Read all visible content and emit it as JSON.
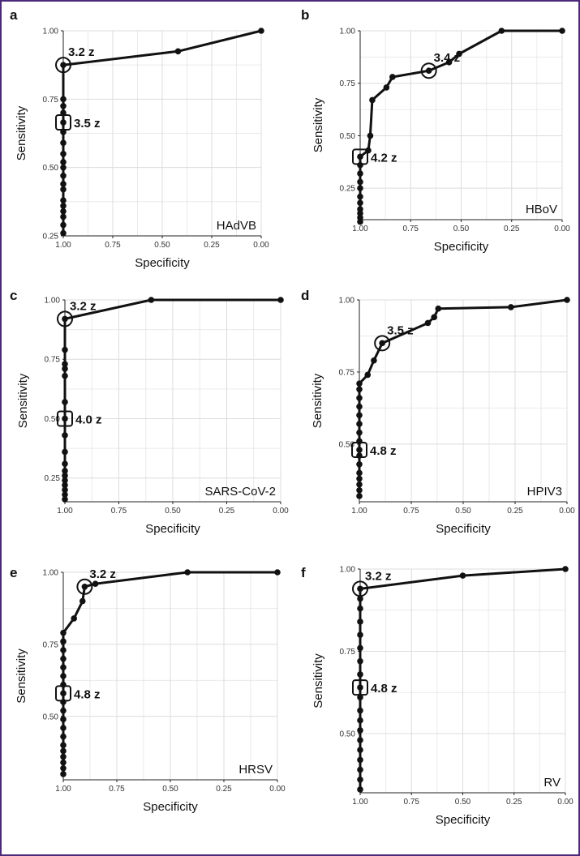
{
  "chart_data": [
    {
      "type": "line",
      "panel": "a",
      "label": "HAdVB",
      "xlabel": "Specificity",
      "ylabel": "Sensitivity",
      "xlim": [
        1.0,
        0.0
      ],
      "ylim": [
        0.25,
        1.0
      ],
      "xticks": [
        "1.00",
        "0.75",
        "0.50",
        "0.25",
        "0.00"
      ],
      "yticks": [
        "0.25",
        "0.50",
        "0.75",
        "1.00"
      ],
      "xticks_v": [
        1.0,
        0.75,
        0.5,
        0.25,
        0.0
      ],
      "yticks_v": [
        0.25,
        0.5,
        0.75,
        1.0
      ],
      "curve": [
        [
          1.0,
          0.26
        ],
        [
          1.0,
          0.875
        ],
        [
          0.42,
          0.925
        ],
        [
          0.0,
          1.0
        ]
      ],
      "points": [
        [
          1.0,
          0.26
        ],
        [
          1.0,
          0.29
        ],
        [
          1.0,
          0.32
        ],
        [
          1.0,
          0.34
        ],
        [
          1.0,
          0.36
        ],
        [
          1.0,
          0.38
        ],
        [
          1.0,
          0.42
        ],
        [
          1.0,
          0.44
        ],
        [
          1.0,
          0.47
        ],
        [
          1.0,
          0.5
        ],
        [
          1.0,
          0.52
        ],
        [
          1.0,
          0.55
        ],
        [
          1.0,
          0.59
        ],
        [
          1.0,
          0.63
        ],
        [
          1.0,
          0.665
        ],
        [
          1.0,
          0.7
        ],
        [
          1.0,
          0.725
        ],
        [
          1.0,
          0.75
        ],
        [
          1.0,
          0.875
        ],
        [
          0.42,
          0.925
        ],
        [
          0.0,
          1.0
        ]
      ],
      "annotations": [
        {
          "text": "3.2 z",
          "x": 1.0,
          "y": 0.875,
          "marker": "circle"
        },
        {
          "text": "3.5 z",
          "x": 1.0,
          "y": 0.665,
          "marker": "square"
        }
      ]
    },
    {
      "type": "line",
      "panel": "b",
      "label": "HBoV",
      "xlabel": "Specificity",
      "ylabel": "Sensitivity",
      "xlim": [
        1.0,
        0.0
      ],
      "ylim": [
        0.1,
        1.0
      ],
      "xticks": [
        "1.00",
        "0.75",
        "0.50",
        "0.25",
        "0.00"
      ],
      "yticks": [
        "0.25",
        "0.50",
        "0.75",
        "1.00"
      ],
      "xticks_v": [
        1.0,
        0.75,
        0.5,
        0.25,
        0.0
      ],
      "yticks_v": [
        0.25,
        0.5,
        0.75,
        1.0
      ],
      "curve": [
        [
          1.0,
          0.09
        ],
        [
          1.0,
          0.4
        ],
        [
          0.96,
          0.43
        ],
        [
          0.95,
          0.5
        ],
        [
          0.94,
          0.67
        ],
        [
          0.87,
          0.73
        ],
        [
          0.84,
          0.78
        ],
        [
          0.66,
          0.81
        ],
        [
          0.56,
          0.85
        ],
        [
          0.51,
          0.89
        ],
        [
          0.3,
          1.0
        ],
        [
          0.0,
          1.0
        ]
      ],
      "points": [
        [
          1.0,
          0.09
        ],
        [
          1.0,
          0.11
        ],
        [
          1.0,
          0.13
        ],
        [
          1.0,
          0.15
        ],
        [
          1.0,
          0.18
        ],
        [
          1.0,
          0.21
        ],
        [
          1.0,
          0.25
        ],
        [
          1.0,
          0.28
        ],
        [
          1.0,
          0.32
        ],
        [
          1.0,
          0.36
        ],
        [
          1.0,
          0.4
        ],
        [
          0.96,
          0.43
        ],
        [
          0.95,
          0.5
        ],
        [
          0.94,
          0.67
        ],
        [
          0.87,
          0.73
        ],
        [
          0.84,
          0.78
        ],
        [
          0.66,
          0.81
        ],
        [
          0.56,
          0.85
        ],
        [
          0.51,
          0.89
        ],
        [
          0.3,
          1.0
        ],
        [
          0.0,
          1.0
        ]
      ],
      "annotations": [
        {
          "text": "3.4 z",
          "x": 0.66,
          "y": 0.81,
          "marker": "circle"
        },
        {
          "text": "4.2 z",
          "x": 1.0,
          "y": 0.4,
          "marker": "square"
        }
      ]
    },
    {
      "type": "line",
      "panel": "c",
      "label": "SARS-CoV-2",
      "xlabel": "Specificity",
      "ylabel": "Sensitivity",
      "xlim": [
        1.0,
        0.0
      ],
      "ylim": [
        0.15,
        1.0
      ],
      "xticks": [
        "1.00",
        "0.75",
        "0.50",
        "0.25",
        "0.00"
      ],
      "yticks": [
        "0.25",
        "0.50",
        "0.75",
        "1.00"
      ],
      "xticks_v": [
        1.0,
        0.75,
        0.5,
        0.25,
        0.0
      ],
      "yticks_v": [
        0.25,
        0.5,
        0.75,
        1.0
      ],
      "curve": [
        [
          1.0,
          0.16
        ],
        [
          1.0,
          0.92
        ],
        [
          0.6,
          1.0
        ],
        [
          0.0,
          1.0
        ]
      ],
      "points": [
        [
          1.0,
          0.16
        ],
        [
          1.0,
          0.18
        ],
        [
          1.0,
          0.2
        ],
        [
          1.0,
          0.22
        ],
        [
          1.0,
          0.24
        ],
        [
          1.0,
          0.26
        ],
        [
          1.0,
          0.28
        ],
        [
          1.0,
          0.31
        ],
        [
          1.0,
          0.36
        ],
        [
          1.0,
          0.43
        ],
        [
          1.0,
          0.5
        ],
        [
          1.0,
          0.57
        ],
        [
          1.0,
          0.68
        ],
        [
          1.0,
          0.71
        ],
        [
          1.0,
          0.73
        ],
        [
          1.0,
          0.79
        ],
        [
          1.0,
          0.92
        ],
        [
          0.6,
          1.0
        ],
        [
          0.0,
          1.0
        ]
      ],
      "annotations": [
        {
          "text": "3.2 z",
          "x": 1.0,
          "y": 0.92,
          "marker": "circle"
        },
        {
          "text": "4.0 z",
          "x": 1.0,
          "y": 0.5,
          "marker": "square"
        }
      ]
    },
    {
      "type": "line",
      "panel": "d",
      "label": "HPIV3",
      "xlabel": "Specificity",
      "ylabel": "Sensitivity",
      "xlim": [
        1.0,
        0.0
      ],
      "ylim": [
        0.3,
        1.0
      ],
      "xticks": [
        "1.00",
        "0.75",
        "0.50",
        "0.25",
        "0.00"
      ],
      "yticks": [
        "0.50",
        "0.75",
        "1.00"
      ],
      "xticks_v": [
        1.0,
        0.75,
        0.5,
        0.25,
        0.0
      ],
      "yticks_v": [
        0.5,
        0.75,
        1.0
      ],
      "curve": [
        [
          1.0,
          0.32
        ],
        [
          1.0,
          0.71
        ],
        [
          0.96,
          0.74
        ],
        [
          0.93,
          0.79
        ],
        [
          0.89,
          0.85
        ],
        [
          0.67,
          0.92
        ],
        [
          0.64,
          0.94
        ],
        [
          0.62,
          0.97
        ],
        [
          0.27,
          0.975
        ],
        [
          0.0,
          1.0
        ]
      ],
      "points": [
        [
          1.0,
          0.32
        ],
        [
          1.0,
          0.34
        ],
        [
          1.0,
          0.36
        ],
        [
          1.0,
          0.38
        ],
        [
          1.0,
          0.4
        ],
        [
          1.0,
          0.43
        ],
        [
          1.0,
          0.46
        ],
        [
          1.0,
          0.48
        ],
        [
          1.0,
          0.51
        ],
        [
          1.0,
          0.54
        ],
        [
          1.0,
          0.57
        ],
        [
          1.0,
          0.6
        ],
        [
          1.0,
          0.63
        ],
        [
          1.0,
          0.66
        ],
        [
          1.0,
          0.69
        ],
        [
          1.0,
          0.71
        ],
        [
          0.96,
          0.74
        ],
        [
          0.93,
          0.79
        ],
        [
          0.89,
          0.85
        ],
        [
          0.67,
          0.92
        ],
        [
          0.64,
          0.94
        ],
        [
          0.62,
          0.97
        ],
        [
          0.27,
          0.975
        ],
        [
          0.0,
          1.0
        ]
      ],
      "annotations": [
        {
          "text": "3.5 z",
          "x": 0.89,
          "y": 0.85,
          "marker": "circle"
        },
        {
          "text": "4.8 z",
          "x": 1.0,
          "y": 0.48,
          "marker": "square"
        }
      ]
    },
    {
      "type": "line",
      "panel": "e",
      "label": "HRSV",
      "xlabel": "Specificity",
      "ylabel": "Sensitivity",
      "xlim": [
        1.0,
        0.0
      ],
      "ylim": [
        0.28,
        1.0
      ],
      "xticks": [
        "1.00",
        "0.75",
        "0.50",
        "0.25",
        "0.00"
      ],
      "yticks": [
        "0.50",
        "0.75",
        "1.00"
      ],
      "xticks_v": [
        1.0,
        0.75,
        0.5,
        0.25,
        0.0
      ],
      "yticks_v": [
        0.5,
        0.75,
        1.0
      ],
      "curve": [
        [
          1.0,
          0.3
        ],
        [
          1.0,
          0.79
        ],
        [
          0.95,
          0.84
        ],
        [
          0.91,
          0.9
        ],
        [
          0.9,
          0.95
        ],
        [
          0.85,
          0.96
        ],
        [
          0.42,
          1.0
        ],
        [
          0.0,
          1.0
        ]
      ],
      "points": [
        [
          1.0,
          0.3
        ],
        [
          1.0,
          0.32
        ],
        [
          1.0,
          0.34
        ],
        [
          1.0,
          0.36
        ],
        [
          1.0,
          0.38
        ],
        [
          1.0,
          0.4
        ],
        [
          1.0,
          0.43
        ],
        [
          1.0,
          0.46
        ],
        [
          1.0,
          0.49
        ],
        [
          1.0,
          0.52
        ],
        [
          1.0,
          0.55
        ],
        [
          1.0,
          0.58
        ],
        [
          1.0,
          0.61
        ],
        [
          1.0,
          0.64
        ],
        [
          1.0,
          0.67
        ],
        [
          1.0,
          0.7
        ],
        [
          1.0,
          0.73
        ],
        [
          1.0,
          0.76
        ],
        [
          1.0,
          0.79
        ],
        [
          0.95,
          0.84
        ],
        [
          0.91,
          0.9
        ],
        [
          0.9,
          0.95
        ],
        [
          0.85,
          0.96
        ],
        [
          0.42,
          1.0
        ],
        [
          0.0,
          1.0
        ]
      ],
      "annotations": [
        {
          "text": "3.2 z",
          "x": 0.9,
          "y": 0.95,
          "marker": "circle"
        },
        {
          "text": "4.8 z",
          "x": 1.0,
          "y": 0.58,
          "marker": "square"
        }
      ]
    },
    {
      "type": "line",
      "panel": "f",
      "label": "RV",
      "xlabel": "Specificity",
      "ylabel": "Sensitivity",
      "xlim": [
        1.0,
        0.0
      ],
      "ylim": [
        0.32,
        1.0
      ],
      "xticks": [
        "1.00",
        "0.75",
        "0.50",
        "0.25",
        "0.00"
      ],
      "yticks": [
        "0.50",
        "0.75",
        "1.00"
      ],
      "xticks_v": [
        1.0,
        0.75,
        0.5,
        0.25,
        0.0
      ],
      "yticks_v": [
        0.5,
        0.75,
        1.0
      ],
      "curve": [
        [
          1.0,
          0.33
        ],
        [
          1.0,
          0.94
        ],
        [
          0.5,
          0.98
        ],
        [
          0.0,
          1.0
        ]
      ],
      "points": [
        [
          1.0,
          0.33
        ],
        [
          1.0,
          0.36
        ],
        [
          1.0,
          0.39
        ],
        [
          1.0,
          0.42
        ],
        [
          1.0,
          0.45
        ],
        [
          1.0,
          0.48
        ],
        [
          1.0,
          0.51
        ],
        [
          1.0,
          0.54
        ],
        [
          1.0,
          0.57
        ],
        [
          1.0,
          0.61
        ],
        [
          1.0,
          0.64
        ],
        [
          1.0,
          0.68
        ],
        [
          1.0,
          0.72
        ],
        [
          1.0,
          0.76
        ],
        [
          1.0,
          0.8
        ],
        [
          1.0,
          0.84
        ],
        [
          1.0,
          0.88
        ],
        [
          1.0,
          0.91
        ],
        [
          1.0,
          0.94
        ],
        [
          0.5,
          0.98
        ],
        [
          0.0,
          1.0
        ]
      ],
      "annotations": [
        {
          "text": "3.2 z",
          "x": 1.0,
          "y": 0.94,
          "marker": "circle"
        },
        {
          "text": "4.8 z",
          "x": 1.0,
          "y": 0.64,
          "marker": "square"
        }
      ]
    }
  ]
}
